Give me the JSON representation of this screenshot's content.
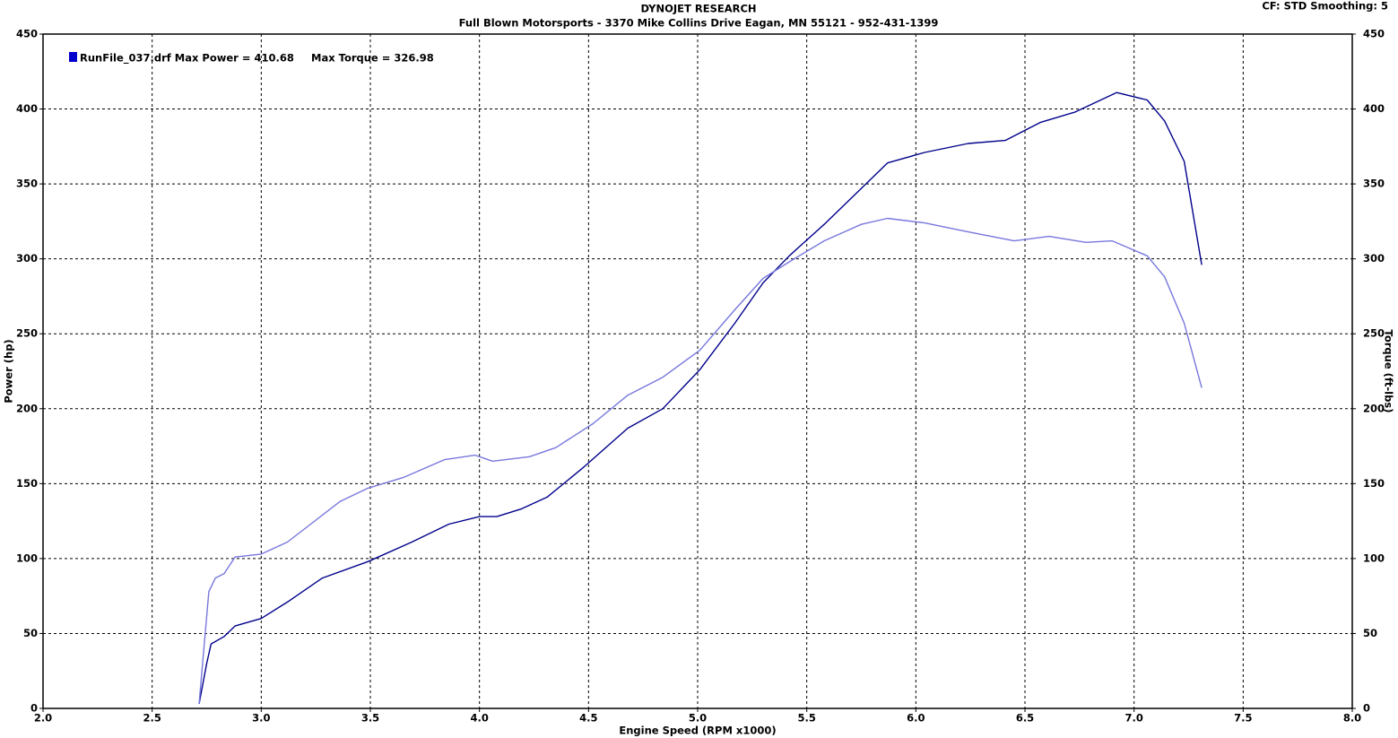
{
  "chart_data": {
    "type": "line",
    "title": "DYNOJET RESEARCH",
    "subtitle": "Full Blown Motorsports - 3370 Mike Collins Drive  Eagan, MN 55121 - 952-431-1399",
    "corner_note": "CF: STD  Smoothing: 5",
    "annotations": [
      "RunFile_037.drf Max Power = 410.68",
      "Max Torque = 326.98"
    ],
    "legend_color": "#0000cc",
    "xlabel": "Engine Speed (RPM x1000)",
    "ylabel": "Power (hp)",
    "y2label": "Torque (ft-lbs)",
    "xlim": [
      2.0,
      8.0
    ],
    "xticks": [
      {
        "value": 2,
        "label": "2.0"
      },
      2.5,
      {
        "value": 3,
        "label": "3.0"
      },
      3.5,
      {
        "value": 4,
        "label": "4.0"
      },
      4.5,
      {
        "value": 5,
        "label": "5.0"
      },
      5.5,
      {
        "value": 6,
        "label": "6.0"
      },
      6.5,
      {
        "value": 7,
        "label": "7.0"
      },
      7.5,
      {
        "value": 8,
        "label": "8.0"
      }
    ],
    "ylim": [
      0,
      450
    ],
    "yticks": [
      0,
      50,
      100,
      150,
      200,
      250,
      300,
      350,
      400,
      450
    ],
    "y2lim": [
      0,
      450
    ],
    "y2ticks": [
      0,
      50,
      100,
      150,
      200,
      250,
      300,
      350,
      400,
      450
    ],
    "grid": true,
    "series": [
      {
        "color": "#00008b",
        "axis": "y",
        "x": [
          2.715,
          2.75,
          2.77,
          2.83,
          2.88,
          3.0,
          3.12,
          3.28,
          3.49,
          3.69,
          3.86,
          4.0,
          4.08,
          4.19,
          4.31,
          4.47,
          4.68,
          4.84,
          5.01,
          5.17,
          5.3,
          5.42,
          5.58,
          5.75,
          5.87,
          6.04,
          6.24,
          6.41,
          6.57,
          6.73,
          6.92,
          7.06,
          7.14,
          7.23,
          7.31
        ],
        "values": [
          3,
          30,
          43,
          48,
          55,
          60,
          71,
          87,
          98,
          111,
          123,
          128,
          128,
          133,
          141,
          160,
          187,
          200,
          226,
          257,
          284,
          302,
          323,
          347,
          364,
          371,
          377,
          379,
          391,
          398,
          411,
          406,
          392,
          365,
          296
        ]
      },
      {
        "color": "#7777dd",
        "axis": "y2",
        "x": [
          2.715,
          2.76,
          2.79,
          2.83,
          2.88,
          3.0,
          3.12,
          3.2,
          3.36,
          3.49,
          3.65,
          3.84,
          3.98,
          4.06,
          4.23,
          4.35,
          4.52,
          4.68,
          4.84,
          5.01,
          5.17,
          5.3,
          5.42,
          5.58,
          5.75,
          5.87,
          6.04,
          6.24,
          6.45,
          6.61,
          6.78,
          6.9,
          7.06,
          7.14,
          7.23,
          7.31
        ],
        "values": [
          3,
          78,
          87,
          90,
          101,
          103,
          111,
          120,
          138,
          147,
          154,
          166,
          169,
          165,
          168,
          174,
          190,
          209,
          221,
          239,
          266,
          287,
          298,
          312,
          323,
          327,
          324,
          318,
          312,
          315,
          311,
          312,
          302,
          288,
          257,
          214
        ]
      }
    ]
  }
}
